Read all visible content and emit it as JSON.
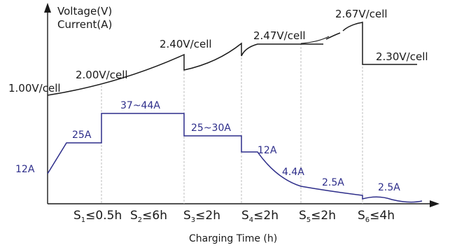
{
  "axis": {
    "y_label_line1": "Voltage(V)",
    "y_label_line2": "Current(A)",
    "x_label": "Charging Time (h)"
  },
  "voltage_labels": {
    "v_start": "1.00V/cell",
    "v_s1": "2.00V/cell",
    "v_s3": "2.40V/cell",
    "v_s4": "2.47V/cell",
    "v_s6_peak": "2.67V/cell",
    "v_s6_end": "2.30V/cell"
  },
  "current_labels": {
    "i_start": "12A",
    "i_s1": "25A",
    "i_s2": "37~44A",
    "i_s3": "25~30A",
    "i_s4": "12A",
    "i_s4b": "4.4A",
    "i_s5": "2.5A",
    "i_s6": "2.5A"
  },
  "stages": {
    "s1": {
      "sub": "1",
      "rel": "≤0.5h"
    },
    "s2": {
      "sub": "2",
      "rel": "≤6h"
    },
    "s3": {
      "sub": "3",
      "rel": "≤2h"
    },
    "s4": {
      "sub": "4",
      "rel": "≤2h"
    },
    "s5": {
      "sub": "5",
      "rel": "≤2h"
    },
    "s6": {
      "sub": "6",
      "rel": "≤4h"
    }
  },
  "colors": {
    "voltage_curve": "#1a1a1a",
    "current_curve": "#2d2d8a",
    "current_text": "#2d2d8a",
    "divider": "#b8b8b8"
  }
}
